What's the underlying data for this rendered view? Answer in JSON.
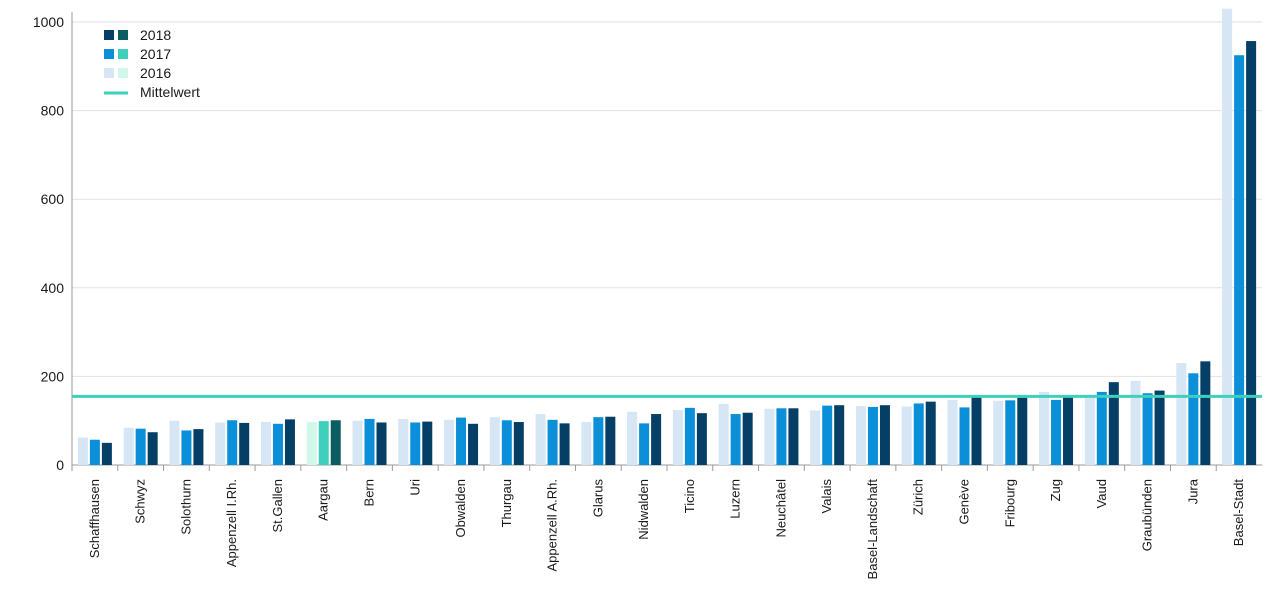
{
  "chart_data": {
    "type": "bar",
    "title": "",
    "xlabel": "",
    "ylabel": "",
    "ylim": [
      0,
      1000
    ],
    "yticks": [
      0,
      200,
      400,
      600,
      800,
      1000
    ],
    "grid": true,
    "legend_position": "top-left",
    "categories": [
      "Schaffhausen",
      "Schwyz",
      "Solothurn",
      "Appenzell I.Rh.",
      "St.Gallen",
      "Aargau",
      "Bern",
      "Uri",
      "Obwalden",
      "Thurgau",
      "Appenzell A.Rh.",
      "Glarus",
      "Nidwalden",
      "Ticino",
      "Luzern",
      "Neuchâtel",
      "Valais",
      "Basel-Landschaft",
      "Zürich",
      "Genève",
      "Fribourg",
      "Zug",
      "Vaud",
      "Graubünden",
      "Jura",
      "Basel-Stadt"
    ],
    "highlight_category": "Aargau",
    "series": [
      {
        "name": "2016",
        "color": "#d6e6f4",
        "highlight_color": "#d2f6ea",
        "values": [
          62,
          84,
          100,
          96,
          97,
          97,
          100,
          104,
          102,
          108,
          115,
          97,
          120,
          124,
          138,
          127,
          123,
          133,
          132,
          147,
          145,
          165,
          158,
          190,
          230,
          1030
        ]
      },
      {
        "name": "2017",
        "color": "#0a8fd8",
        "highlight_color": "#3dd1bd",
        "values": [
          57,
          82,
          78,
          101,
          93,
          99,
          104,
          96,
          107,
          101,
          102,
          108,
          94,
          129,
          115,
          128,
          134,
          131,
          139,
          130,
          146,
          147,
          165,
          162,
          207,
          925
        ]
      },
      {
        "name": "2018",
        "color": "#053f66",
        "highlight_color": "#0c5d62",
        "values": [
          50,
          74,
          81,
          95,
          103,
          101,
          96,
          98,
          93,
          97,
          94,
          109,
          115,
          117,
          118,
          128,
          135,
          135,
          143,
          153,
          152,
          155,
          187,
          168,
          234,
          957
        ]
      }
    ],
    "reference_lines": [
      {
        "name": "Mittelwert",
        "value": 155,
        "color": "#3dd1bd"
      }
    ]
  }
}
